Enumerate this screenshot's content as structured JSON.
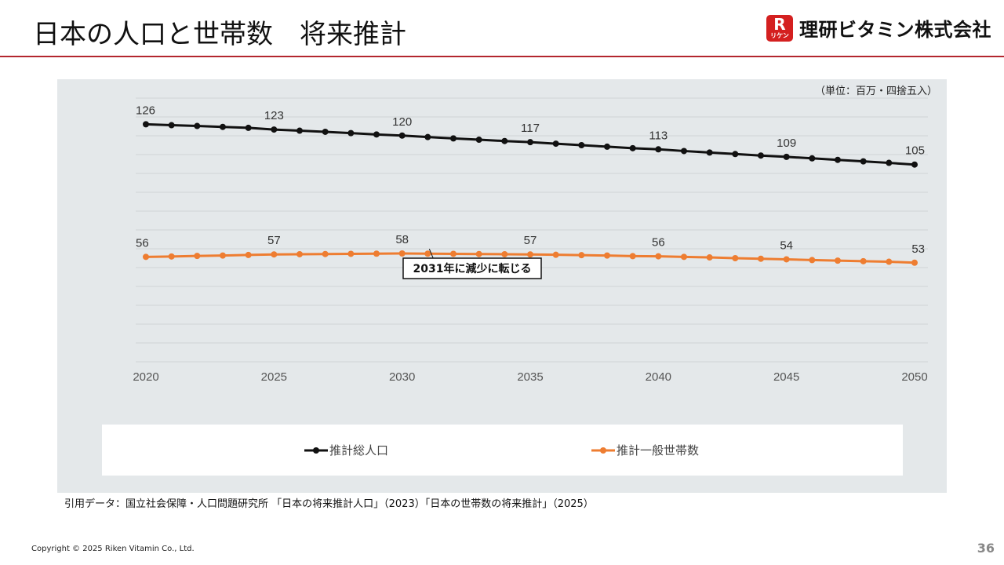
{
  "header": {
    "title": "日本の人口と世帯数　将来推計",
    "logo_mark_top": "R",
    "logo_mark_bottom": "リケン",
    "logo_text": "理研ビタミン株式会社"
  },
  "chart_note": "（単位：百万・四捨五入）",
  "source": "引用データ：国立社会保障・人口問題研究所 「日本の将来推計人口」（2023）「日本の世帯数の将来推計」（2025）",
  "footer": {
    "copyright": "Copyright © 2025 Riken Vitamin Co., Ltd.",
    "page": "36"
  },
  "colors": {
    "population": "#111111",
    "households": "#ee7d31",
    "accent_rule": "#b3262e"
  },
  "chart_data": {
    "type": "line",
    "x": [
      2020,
      2021,
      2022,
      2023,
      2024,
      2025,
      2026,
      2027,
      2028,
      2029,
      2030,
      2031,
      2032,
      2033,
      2034,
      2035,
      2036,
      2037,
      2038,
      2039,
      2040,
      2041,
      2042,
      2043,
      2044,
      2045,
      2046,
      2047,
      2048,
      2049,
      2050
    ],
    "xticks": [
      2020,
      2025,
      2030,
      2035,
      2040,
      2045,
      2050
    ],
    "ylim": [
      0,
      140
    ],
    "grid": true,
    "legend_position": "bottom",
    "series": [
      {
        "name": "推計総人口",
        "color": "#111111",
        "values": [
          126.1,
          125.6,
          125.2,
          124.7,
          124.2,
          123.3,
          122.7,
          122.1,
          121.4,
          120.7,
          120.1,
          119.3,
          118.6,
          117.9,
          117.2,
          116.6,
          115.8,
          115.0,
          114.2,
          113.4,
          112.8,
          111.9,
          111.1,
          110.3,
          109.5,
          108.8,
          108.0,
          107.2,
          106.4,
          105.6,
          104.7
        ],
        "labels": [
          {
            "year": 2020,
            "text": "126"
          },
          {
            "year": 2025,
            "text": "123"
          },
          {
            "year": 2030,
            "text": "120"
          },
          {
            "year": 2035,
            "text": "117"
          },
          {
            "year": 2040,
            "text": "113"
          },
          {
            "year": 2045,
            "text": "109"
          },
          {
            "year": 2050,
            "text": "105"
          }
        ]
      },
      {
        "name": "推計一般世帯数",
        "color": "#ee7d31",
        "values": [
          55.7,
          55.9,
          56.2,
          56.4,
          56.7,
          57.0,
          57.1,
          57.2,
          57.3,
          57.4,
          57.5,
          57.4,
          57.3,
          57.2,
          57.1,
          57.0,
          56.8,
          56.6,
          56.4,
          56.1,
          56.0,
          55.7,
          55.4,
          55.0,
          54.7,
          54.4,
          54.0,
          53.7,
          53.4,
          53.1,
          52.6
        ],
        "labels": [
          {
            "year": 2020,
            "text": "56"
          },
          {
            "year": 2025,
            "text": "57"
          },
          {
            "year": 2030,
            "text": "58"
          },
          {
            "year": 2035,
            "text": "57"
          },
          {
            "year": 2040,
            "text": "56"
          },
          {
            "year": 2045,
            "text": "54"
          },
          {
            "year": 2050,
            "text": "53"
          }
        ]
      }
    ],
    "annotation": {
      "text": "2031年に減少に転じる",
      "year": 2031,
      "series": 1
    }
  }
}
